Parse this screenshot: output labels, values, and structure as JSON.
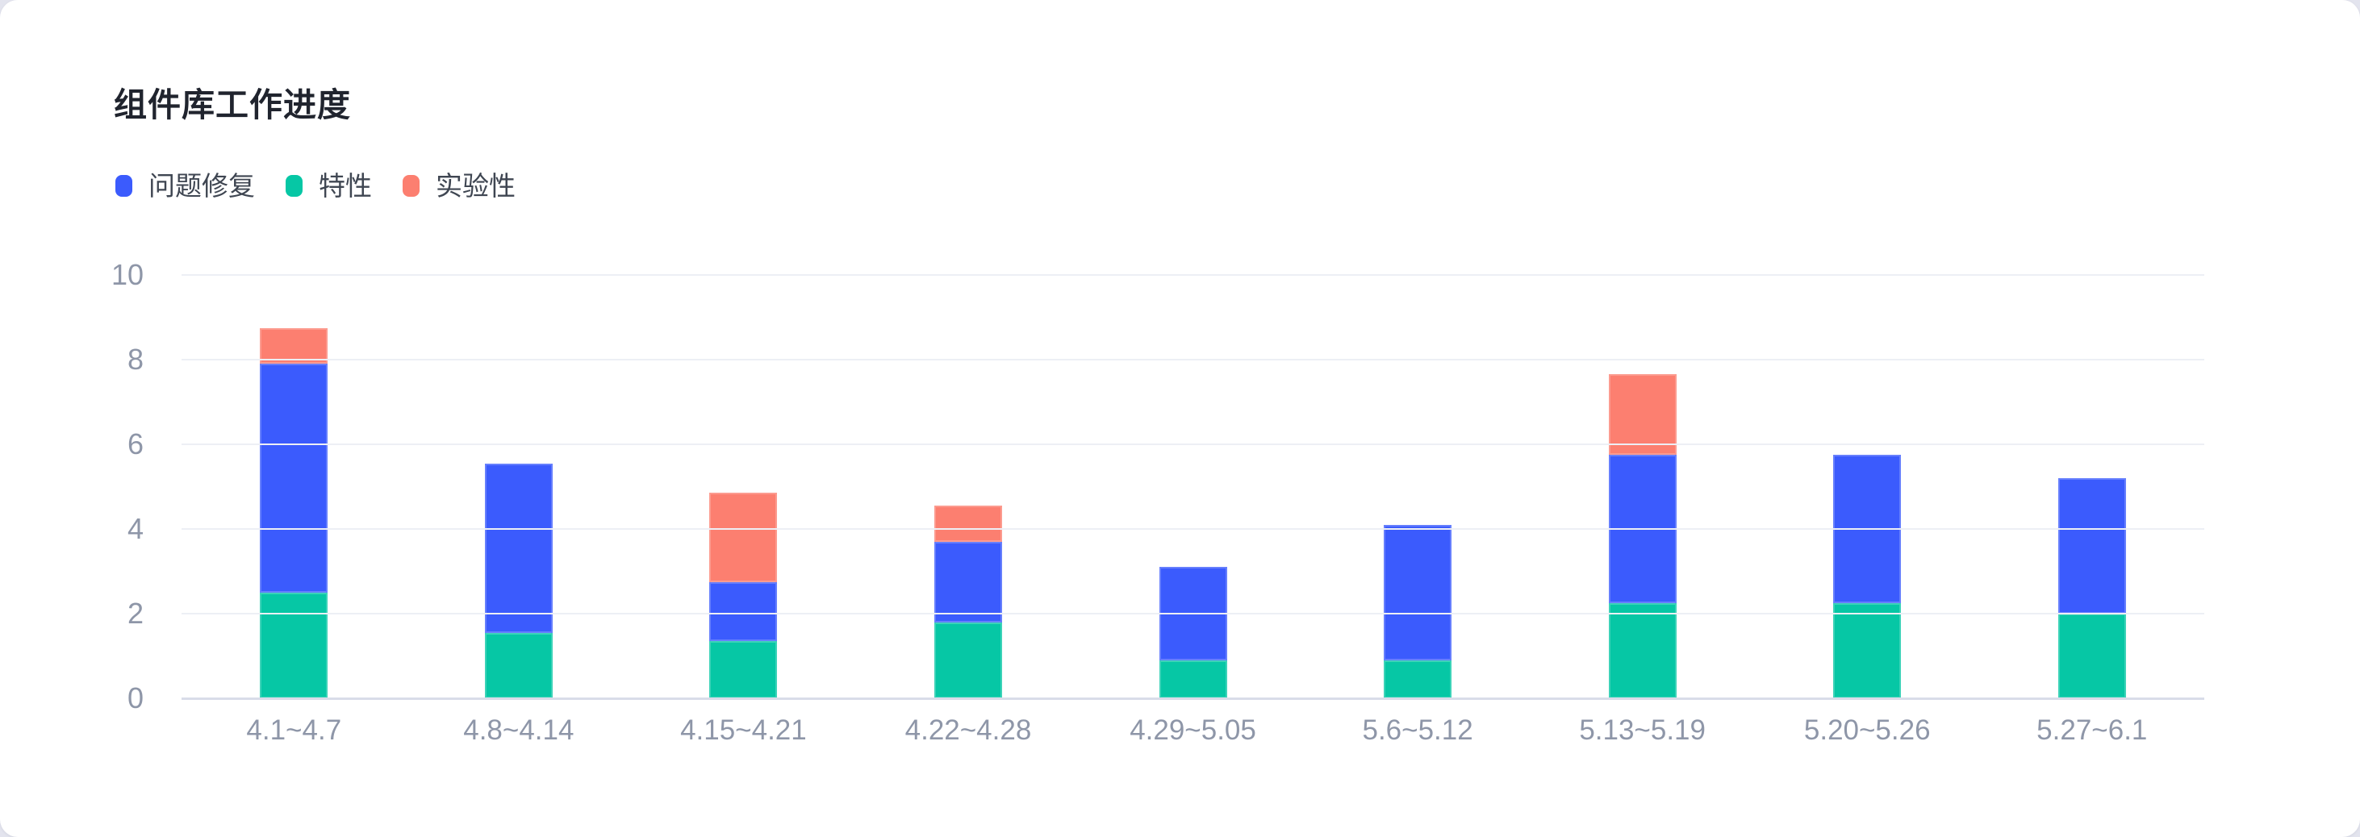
{
  "page": {
    "background_color": "#e3e4ee",
    "card_background_color": "#ffffff"
  },
  "header": {
    "title": "组件库工作进度"
  },
  "legend": {
    "items": [
      {
        "label": "问题修复",
        "color": "#3b5bfd"
      },
      {
        "label": "特性",
        "color": "#06c7a5"
      },
      {
        "label": "实验性",
        "color": "#fc7f70"
      }
    ]
  },
  "axis": {
    "tick_color": "#8e96a8",
    "grid_color": "#edeff5",
    "axis_line_color": "#d9dce9"
  },
  "chart_data": {
    "type": "bar",
    "stacked": true,
    "title": "组件库工作进度",
    "xlabel": "",
    "ylabel": "",
    "ylim": [
      0,
      10
    ],
    "yticks": [
      0,
      2,
      4,
      6,
      8,
      10
    ],
    "grid": true,
    "legend_position": "top-left",
    "categories": [
      "4.1~4.7",
      "4.8~4.14",
      "4.15~4.21",
      "4.22~4.28",
      "4.29~5.05",
      "5.6~5.12",
      "5.13~5.19",
      "5.20~5.26",
      "5.27~6.1"
    ],
    "series": [
      {
        "name": "问题修复",
        "color": "#3b5bfd",
        "values": [
          5.4,
          4.0,
          1.4,
          1.9,
          2.2,
          3.2,
          3.5,
          3.5,
          3.2
        ]
      },
      {
        "name": "特性",
        "color": "#06c7a5",
        "values": [
          2.5,
          1.55,
          1.35,
          1.8,
          0.9,
          0.9,
          2.25,
          2.25,
          2.0
        ]
      },
      {
        "name": "实验性",
        "color": "#fc7f70",
        "values": [
          0.85,
          0,
          2.1,
          0.85,
          0,
          0,
          1.9,
          0,
          0
        ]
      }
    ],
    "stack_order_bottom_to_top": [
      "特性",
      "问题修复",
      "实验性"
    ],
    "stack_totals": [
      8.75,
      5.55,
      4.85,
      4.55,
      3.1,
      4.1,
      7.65,
      5.75,
      5.2
    ]
  }
}
